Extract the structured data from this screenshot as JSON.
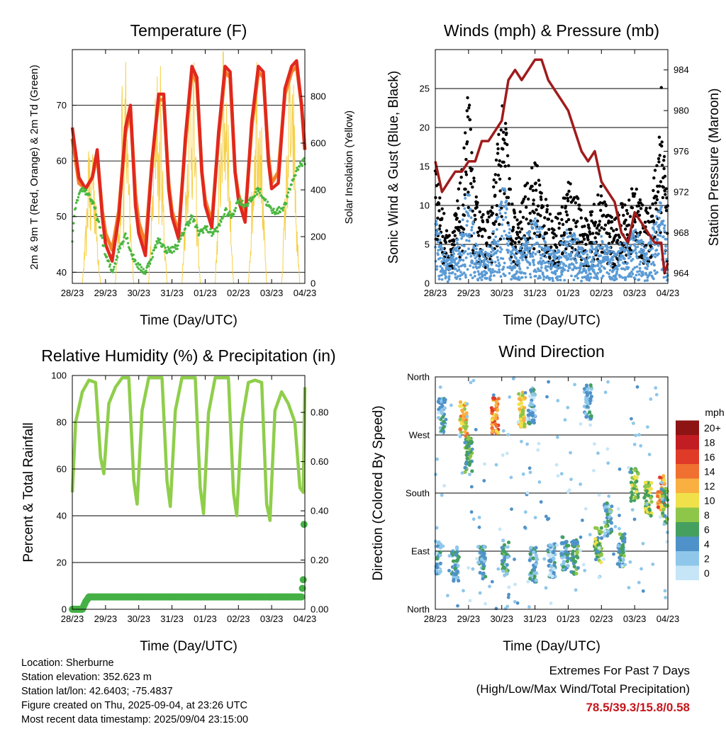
{
  "colors": {
    "temp2m": "#e0281e",
    "temp9m": "#f5802a",
    "dewpoint": "#4ab840",
    "solar": "#f7d04a",
    "sonic_wind": "#5b9bd5",
    "gust": "#000000",
    "pressure": "#a01c1c",
    "rh": "#8fce4a",
    "precip": "#45b045",
    "extremes": "#c4161c"
  },
  "charts": {
    "temperature": {
      "title": "Temperature (F)",
      "xlabel": "Time (Day/UTC)",
      "ylabel_left": "2m & 9m T (Red, Orange) & 2m Td (Green)",
      "ylabel_right": "Solar Insolation (Yellow)"
    },
    "winds": {
      "title": "Winds (mph) & Pressure (mb)",
      "xlabel": "Time (Day/UTC)",
      "ylabel_left": "Sonic Wind & Gust (Blue, Black)",
      "ylabel_right": "Station Pressure (Maroon)"
    },
    "humidity": {
      "title": "Relative Humidity (%) & Precipitation (in)",
      "xlabel": "Time (Day/UTC)",
      "ylabel_left": "Percent & Total Rainfall"
    },
    "direction": {
      "title": "Wind Direction",
      "xlabel": "Time (Day/UTC)",
      "ylabel_left": "Direction (Colored By Speed)",
      "legend_title": "mph"
    }
  },
  "station": {
    "location": "Location: Sherburne",
    "elevation": "Station elevation: 352.623 m",
    "latlon": "Station lat/lon: 42.6403; -75.4837",
    "created": "Figure created on Thu, 2025-09-04, at 23:26 UTC",
    "latest": "Most recent data timestamp: 2025/09/04 23:15:00"
  },
  "extremes": {
    "line1": "Extremes For Past 7 Days",
    "line2": "(High/Low/Max Wind/Total Precipitation)",
    "values": "78.5/39.3/15.8/0.58"
  },
  "chart_data": [
    {
      "id": "temperature",
      "type": "line",
      "title": "Temperature (F)",
      "xlabel": "Time (Day/UTC)",
      "ylabel": "2m & 9m T (Red, Orange) & 2m Td (Green)",
      "y2label": "Solar Insolation (Yellow)",
      "x_ticks": [
        "28/23",
        "29/23",
        "30/23",
        "31/23",
        "01/23",
        "02/23",
        "03/23",
        "04/23"
      ],
      "ylim": [
        38,
        80
      ],
      "y_ticks": [
        40,
        50,
        60,
        70
      ],
      "y2lim": [
        0,
        1000
      ],
      "y2_ticks": [
        0,
        200,
        400,
        600,
        800
      ],
      "grid": true,
      "series": [
        {
          "name": "2m T",
          "axis": "left",
          "x": [
            0,
            0.2,
            0.4,
            0.6,
            0.75,
            0.9,
            1,
            1.2,
            1.4,
            1.6,
            1.75,
            1.9,
            2,
            2.2,
            2.4,
            2.6,
            2.75,
            2.9,
            3,
            3.2,
            3.4,
            3.6,
            3.75,
            3.9,
            4,
            4.2,
            4.4,
            4.6,
            4.75,
            4.9,
            5,
            5.2,
            5.4,
            5.6,
            5.75,
            5.9,
            6,
            6.2,
            6.4,
            6.6,
            6.75,
            6.9,
            7
          ],
          "values": [
            66,
            57,
            55,
            57,
            62,
            50,
            45,
            42,
            50,
            66,
            70,
            52,
            47,
            43,
            60,
            72,
            72,
            55,
            50,
            46,
            64,
            77,
            75,
            58,
            52,
            48,
            65,
            77,
            76,
            58,
            53,
            49,
            67,
            77,
            76,
            60,
            55,
            56,
            73,
            77,
            78,
            70,
            62
          ]
        },
        {
          "name": "9m T",
          "axis": "left",
          "x": [
            0,
            0.2,
            0.4,
            0.6,
            0.75,
            0.9,
            1,
            1.2,
            1.4,
            1.6,
            1.75,
            1.9,
            2,
            2.2,
            2.4,
            2.6,
            2.75,
            2.9,
            3,
            3.2,
            3.4,
            3.6,
            3.75,
            3.9,
            4,
            4.2,
            4.4,
            4.6,
            4.75,
            4.9,
            5,
            5.2,
            5.4,
            5.6,
            5.75,
            5.9,
            6,
            6.2,
            6.4,
            6.6,
            6.75,
            6.9,
            7
          ],
          "values": [
            64,
            56,
            55,
            57,
            61,
            51,
            47,
            44,
            51,
            65,
            69,
            54,
            49,
            45,
            60,
            71,
            71,
            56,
            51,
            47,
            63,
            76,
            74,
            58,
            53,
            49,
            64,
            76,
            75,
            58,
            54,
            50,
            66,
            76,
            75,
            61,
            56,
            58,
            72,
            76,
            77,
            70,
            62
          ]
        },
        {
          "name": "2m Td",
          "axis": "left",
          "x": [
            0,
            0.1,
            0.3,
            0.5,
            0.7,
            0.9,
            1,
            1.2,
            1.4,
            1.6,
            1.8,
            2,
            2.2,
            2.4,
            2.6,
            2.8,
            3,
            3.2,
            3.4,
            3.6,
            3.8,
            4,
            4.2,
            4.4,
            4.6,
            4.8,
            5,
            5.2,
            5.4,
            5.6,
            5.8,
            6,
            6.2,
            6.4,
            6.6,
            6.8,
            7
          ],
          "values": [
            46,
            52,
            55,
            54,
            51,
            46,
            43,
            40,
            44,
            47,
            43,
            41,
            40,
            43,
            46,
            44,
            44,
            45,
            48,
            50,
            47,
            48,
            47,
            48,
            51,
            50,
            53,
            52,
            53,
            55,
            53,
            51,
            51,
            52,
            56,
            59,
            60
          ]
        },
        {
          "name": "Solar Insolation",
          "axis": "right",
          "x": [
            0,
            0.3,
            0.45,
            0.5,
            0.55,
            0.6,
            0.65,
            0.75,
            0.85,
            1,
            1.3,
            1.45,
            1.5,
            1.55,
            1.6,
            1.65,
            1.75,
            1.85,
            2,
            2.3,
            2.45,
            2.55,
            2.6,
            2.65,
            2.75,
            2.85,
            3,
            3.3,
            3.45,
            3.55,
            3.6,
            3.65,
            3.75,
            3.85,
            4,
            4.3,
            4.45,
            4.55,
            4.6,
            4.65,
            4.75,
            4.85,
            5,
            5.3,
            5.45,
            5.55,
            5.6,
            5.65,
            5.75,
            5.85,
            6,
            6.3,
            6.45,
            6.55,
            6.6,
            6.65,
            6.75,
            6.85,
            7
          ],
          "values": [
            0,
            0,
            300,
            700,
            250,
            650,
            500,
            200,
            0,
            0,
            0,
            400,
            850,
            300,
            900,
            600,
            250,
            0,
            0,
            0,
            500,
            950,
            400,
            800,
            300,
            0,
            0,
            0,
            500,
            900,
            700,
            850,
            300,
            0,
            0,
            0,
            550,
            950,
            700,
            900,
            350,
            0,
            0,
            0,
            500,
            920,
            650,
            880,
            300,
            0,
            0,
            0,
            500,
            880,
            600,
            800,
            250,
            0,
            0
          ]
        }
      ]
    },
    {
      "id": "winds",
      "type": "scatter",
      "title": "Winds (mph) & Pressure (mb)",
      "xlabel": "Time (Day/UTC)",
      "ylabel": "Sonic Wind & Gust (Blue, Black)",
      "y2label": "Station Pressure (Maroon)",
      "x_ticks": [
        "28/23",
        "29/23",
        "30/23",
        "31/23",
        "01/23",
        "02/23",
        "03/23",
        "04/23"
      ],
      "ylim": [
        0,
        30
      ],
      "y_ticks": [
        0,
        5,
        10,
        15,
        20,
        25
      ],
      "y2lim": [
        963,
        986
      ],
      "y2_ticks": [
        964,
        968,
        972,
        976,
        980,
        984
      ],
      "grid": true,
      "series": [
        {
          "name": "Gust envelope",
          "axis": "left",
          "x": [
            0,
            0.2,
            0.4,
            0.6,
            0.8,
            0.9,
            1,
            1.2,
            1.5,
            1.7,
            1.9,
            2.1,
            2.3,
            2.5,
            2.7,
            3,
            3.2,
            3.4,
            3.6,
            3.8,
            4,
            4.2,
            4.4,
            4.6,
            4.8,
            5,
            5.2,
            5.4,
            5.6,
            5.8,
            6,
            6.2,
            6.4,
            6.6,
            6.8,
            7
          ],
          "values": [
            17,
            10,
            6,
            9,
            14,
            20,
            24,
            11,
            8,
            10,
            20,
            23,
            10,
            8,
            12,
            16,
            13,
            9,
            8,
            10,
            14,
            12,
            9,
            8,
            10,
            12,
            9,
            8,
            10,
            11,
            13,
            10,
            9,
            14,
            27,
            9
          ]
        },
        {
          "name": "Sonic wind envelope",
          "axis": "left",
          "x": [
            0,
            0.2,
            0.4,
            0.6,
            0.8,
            0.9,
            1,
            1.2,
            1.5,
            1.7,
            1.9,
            2.1,
            2.3,
            2.5,
            2.7,
            3,
            3.2,
            3.4,
            3.6,
            3.8,
            4,
            4.2,
            4.4,
            4.6,
            4.8,
            5,
            5.2,
            5.4,
            5.6,
            5.8,
            6,
            6.2,
            6.4,
            6.6,
            6.8,
            7
          ],
          "values": [
            12,
            6,
            4,
            6,
            10,
            14,
            16,
            7,
            5,
            7,
            14,
            16,
            7,
            5,
            8,
            11,
            9,
            6,
            5,
            7,
            9,
            8,
            6,
            5,
            7,
            8,
            6,
            5,
            7,
            8,
            9,
            7,
            6,
            10,
            14,
            6
          ]
        },
        {
          "name": "Station Pressure",
          "axis": "right",
          "x": [
            0,
            0.2,
            0.4,
            0.6,
            0.8,
            1,
            1.2,
            1.4,
            1.6,
            1.8,
            2,
            2.2,
            2.4,
            2.6,
            2.8,
            3,
            3.2,
            3.4,
            3.6,
            3.8,
            4,
            4.2,
            4.4,
            4.6,
            4.8,
            5,
            5.2,
            5.4,
            5.6,
            5.8,
            6,
            6.2,
            6.4,
            6.6,
            6.8,
            6.9,
            7
          ],
          "values": [
            975,
            972,
            973,
            974,
            974,
            975,
            975,
            977,
            977,
            978,
            979,
            983,
            984,
            983,
            984,
            985,
            985,
            983,
            982,
            981,
            980,
            978,
            976,
            975,
            976,
            973,
            972,
            971,
            968,
            967,
            970,
            969,
            968,
            967,
            967,
            964,
            965
          ]
        }
      ]
    },
    {
      "id": "humidity",
      "type": "line",
      "title": "Relative Humidity (%) & Precipitation (in)",
      "xlabel": "Time (Day/UTC)",
      "ylabel": "Percent & Total Rainfall",
      "x_ticks": [
        "28/23",
        "29/23",
        "30/23",
        "31/23",
        "01/23",
        "02/23",
        "03/23",
        "04/23"
      ],
      "ylim": [
        0,
        100
      ],
      "y_ticks": [
        0,
        20,
        40,
        60,
        80,
        100
      ],
      "y2lim": [
        0,
        0.95
      ],
      "y2_ticks": [
        "0.00",
        "0.20",
        "0.40",
        "0.60",
        "0.80"
      ],
      "grid": true,
      "series": [
        {
          "name": "Relative Humidity",
          "axis": "left",
          "x": [
            0,
            0.1,
            0.3,
            0.5,
            0.7,
            0.85,
            0.95,
            1.1,
            1.3,
            1.5,
            1.7,
            1.85,
            1.95,
            2.1,
            2.3,
            2.5,
            2.7,
            2.85,
            2.95,
            3.1,
            3.3,
            3.5,
            3.7,
            3.85,
            3.95,
            4.1,
            4.3,
            4.5,
            4.7,
            4.85,
            4.95,
            5.1,
            5.3,
            5.5,
            5.7,
            5.85,
            5.95,
            6.1,
            6.3,
            6.5,
            6.7,
            6.85,
            6.95,
            7
          ],
          "values": [
            50,
            80,
            93,
            98,
            97,
            65,
            58,
            88,
            95,
            99,
            99,
            55,
            45,
            85,
            99,
            99,
            99,
            55,
            44,
            85,
            99,
            99,
            99,
            52,
            41,
            84,
            99,
            99,
            99,
            50,
            40,
            80,
            97,
            98,
            97,
            45,
            38,
            85,
            93,
            88,
            80,
            52,
            50,
            95
          ]
        },
        {
          "name": "Total Precipitation",
          "axis": "right",
          "x": [
            0,
            0.3,
            0.4,
            0.5,
            6.9,
            6.95,
            7
          ],
          "values": [
            0,
            0,
            0.03,
            0.05,
            0.05,
            0.12,
            0.57
          ]
        }
      ]
    },
    {
      "id": "direction",
      "type": "scatter",
      "title": "Wind Direction",
      "xlabel": "Time (Day/UTC)",
      "ylabel": "Direction (Colored By Speed)",
      "x_ticks": [
        "28/23",
        "29/23",
        "30/23",
        "31/23",
        "01/23",
        "02/23",
        "03/23",
        "04/23"
      ],
      "y_ticks": [
        "North",
        "East",
        "South",
        "West",
        "North"
      ],
      "ylim": [
        0,
        360
      ],
      "grid": true,
      "legend": {
        "title": "mph",
        "labels": [
          "0",
          "2",
          "4",
          "6",
          "8",
          "10",
          "12",
          "14",
          "16",
          "18",
          "20+"
        ],
        "colors": [
          "#c6e6f7",
          "#8ec7ea",
          "#4f92c9",
          "#45a060",
          "#8ec64a",
          "#f0e04a",
          "#f9b040",
          "#f07030",
          "#e03a28",
          "#c21d23",
          "#8e1414"
        ],
        "placement": "right"
      },
      "clusters": [
        {
          "x": 0.05,
          "dir": 80,
          "speed": 3
        },
        {
          "x": 0.2,
          "dir": 300,
          "speed": 3
        },
        {
          "x": 0.6,
          "dir": 70,
          "speed": 4
        },
        {
          "x": 0.85,
          "dir": 295,
          "speed": 11
        },
        {
          "x": 1.0,
          "dir": 240,
          "speed": 6
        },
        {
          "x": 1.4,
          "dir": 75,
          "speed": 4
        },
        {
          "x": 1.8,
          "dir": 300,
          "speed": 13
        },
        {
          "x": 2.1,
          "dir": 80,
          "speed": 5
        },
        {
          "x": 2.6,
          "dir": 310,
          "speed": 10
        },
        {
          "x": 2.9,
          "dir": 315,
          "speed": 3
        },
        {
          "x": 2.95,
          "dir": 70,
          "speed": 4
        },
        {
          "x": 3.5,
          "dir": 75,
          "speed": 3
        },
        {
          "x": 3.9,
          "dir": 85,
          "speed": 4
        },
        {
          "x": 4.2,
          "dir": 80,
          "speed": 6
        },
        {
          "x": 4.6,
          "dir": 320,
          "speed": 3
        },
        {
          "x": 4.9,
          "dir": 100,
          "speed": 7
        },
        {
          "x": 5.2,
          "dir": 140,
          "speed": 5
        },
        {
          "x": 5.6,
          "dir": 90,
          "speed": 5
        },
        {
          "x": 6.0,
          "dir": 190,
          "speed": 8
        },
        {
          "x": 6.4,
          "dir": 170,
          "speed": 8
        },
        {
          "x": 6.8,
          "dir": 180,
          "speed": 13
        },
        {
          "x": 6.95,
          "dir": 160,
          "speed": 7
        }
      ]
    }
  ]
}
